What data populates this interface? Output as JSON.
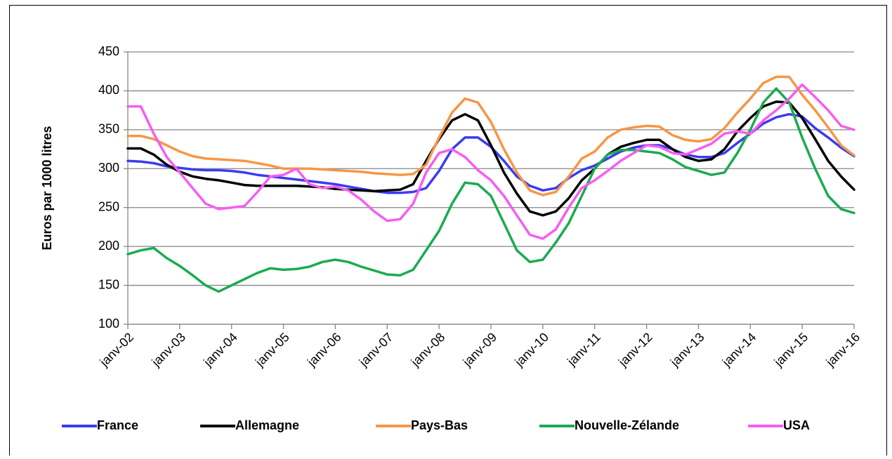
{
  "chart_data": {
    "type": "line",
    "ylabel": "Euros par 1000 litres",
    "ylim": [
      100,
      450
    ],
    "yticks": [
      100,
      150,
      200,
      250,
      300,
      350,
      400,
      450
    ],
    "grid": true,
    "legend": "bottom",
    "categories": [
      "janv-02",
      null,
      null,
      null,
      "janv-03",
      null,
      null,
      null,
      "janv-04",
      null,
      null,
      null,
      "janv-05",
      null,
      null,
      null,
      "janv-06",
      null,
      null,
      null,
      "janv-07",
      null,
      null,
      null,
      "janv-08",
      null,
      null,
      null,
      "janv-09",
      null,
      null,
      null,
      "janv-10",
      null,
      null,
      null,
      "janv-11",
      null,
      null,
      null,
      "janv-12",
      null,
      null,
      null,
      "janv-13",
      null,
      null,
      null,
      "janv-14",
      null,
      null,
      null,
      "janv-15",
      null,
      null,
      null,
      "janv-16"
    ],
    "series": [
      {
        "name": "France",
        "color": "#3b3bf0",
        "values": [
          310,
          309,
          307,
          303,
          301,
          299,
          298,
          298,
          297,
          295,
          292,
          290,
          288,
          286,
          284,
          282,
          280,
          277,
          274,
          271,
          269,
          269,
          270,
          275,
          297,
          325,
          340,
          340,
          328,
          310,
          290,
          278,
          272,
          275,
          288,
          298,
          304,
          313,
          322,
          327,
          330,
          330,
          325,
          318,
          315,
          315,
          320,
          333,
          345,
          358,
          366,
          370,
          367,
          352,
          340,
          327,
          316
        ]
      },
      {
        "name": "Allemagne",
        "color": "#000000",
        "values": [
          326,
          326,
          318,
          305,
          296,
          290,
          287,
          285,
          282,
          279,
          278,
          278,
          278,
          278,
          277,
          276,
          274,
          273,
          272,
          271,
          272,
          273,
          280,
          310,
          338,
          362,
          370,
          362,
          330,
          295,
          268,
          245,
          240,
          245,
          262,
          285,
          300,
          318,
          328,
          333,
          337,
          337,
          325,
          315,
          310,
          312,
          325,
          348,
          365,
          380,
          386,
          385,
          365,
          338,
          310,
          290,
          273
        ]
      },
      {
        "name": "Pays-Bas",
        "color": "#f79646",
        "values": [
          342,
          342,
          338,
          330,
          322,
          316,
          313,
          312,
          311,
          310,
          307,
          304,
          300,
          300,
          300,
          299,
          298,
          297,
          296,
          294,
          293,
          292,
          293,
          305,
          340,
          372,
          390,
          385,
          360,
          325,
          295,
          272,
          266,
          270,
          290,
          313,
          322,
          340,
          350,
          353,
          355,
          354,
          343,
          337,
          335,
          338,
          352,
          372,
          390,
          410,
          418,
          418,
          395,
          375,
          353,
          330,
          317
        ]
      },
      {
        "name": "Nouvelle-Zélande",
        "color": "#1aab50",
        "values": [
          190,
          195,
          198,
          185,
          175,
          163,
          150,
          142,
          150,
          158,
          166,
          172,
          170,
          171,
          174,
          180,
          183,
          180,
          174,
          169,
          164,
          163,
          170,
          195,
          220,
          255,
          282,
          280,
          265,
          230,
          195,
          180,
          183,
          205,
          230,
          265,
          300,
          318,
          324,
          324,
          322,
          320,
          312,
          302,
          297,
          292,
          295,
          320,
          350,
          385,
          403,
          385,
          340,
          300,
          265,
          248,
          243
        ]
      },
      {
        "name": "USA",
        "color": "#f55ef0",
        "values": [
          380,
          380,
          345,
          315,
          295,
          275,
          255,
          248,
          250,
          252,
          270,
          290,
          292,
          300,
          280,
          275,
          277,
          272,
          260,
          245,
          233,
          235,
          255,
          295,
          320,
          325,
          315,
          298,
          285,
          265,
          240,
          215,
          210,
          222,
          250,
          275,
          285,
          297,
          310,
          320,
          330,
          328,
          320,
          318,
          325,
          332,
          345,
          348,
          345,
          362,
          375,
          390,
          408,
          392,
          375,
          355,
          350
        ]
      }
    ]
  }
}
